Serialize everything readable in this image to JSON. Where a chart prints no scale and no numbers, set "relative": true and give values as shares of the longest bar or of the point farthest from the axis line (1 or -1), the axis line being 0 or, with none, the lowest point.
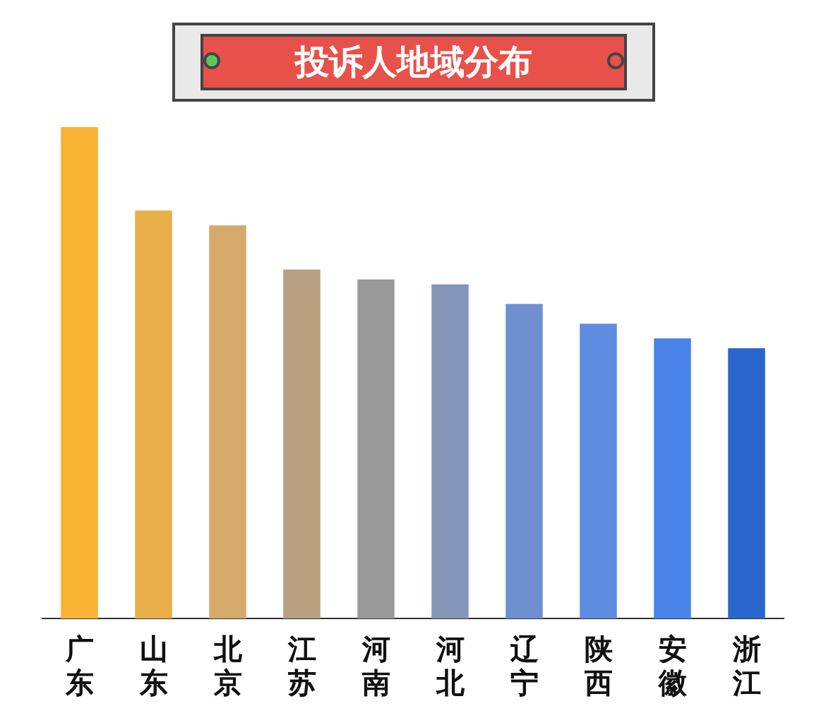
{
  "chart_data": {
    "type": "bar",
    "title": "投诉人地域分布",
    "relative": true,
    "categories": [
      "广东",
      "山东",
      "北京",
      "江苏",
      "河南",
      "河北",
      "辽宁",
      "陕西",
      "安徽",
      "浙江"
    ],
    "values": [
      1,
      0.83,
      0.8,
      0.71,
      0.69,
      0.68,
      0.64,
      0.6,
      0.57,
      0.55
    ],
    "colors": [
      "#f9b233",
      "#e8ae4a",
      "#d4a96a",
      "#b8a080",
      "#9a9a9a",
      "#8496b8",
      "#6f8fd0",
      "#5e8ce0",
      "#4a84e8",
      "#2a66cc"
    ],
    "grid": false,
    "legend": false
  }
}
